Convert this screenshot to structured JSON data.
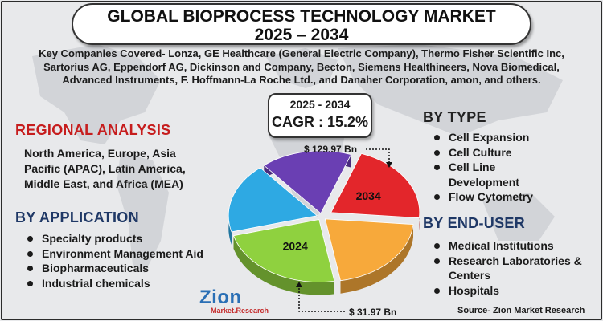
{
  "title": {
    "line1": "GLOBAL BIOPROCESS TECHNOLOGY MARKET",
    "line2": "2025 – 2034"
  },
  "companies": {
    "line1": "Key Companies Covered- Lonza, GE Healthcare (General Electric Company), Thermo Fisher Scientific Inc,",
    "line2": "Sartorius AG, Eppendorf AG, Dickinson and Company, Becton, Siemens Healthineers, Nova Biomedical,",
    "line3": "Advanced Instruments, F. Hoffmann-La Roche Ltd., and Danaher Corporation, amon, and others."
  },
  "cagr": {
    "period": "2025 - 2034",
    "label": "CAGR : 15.2%"
  },
  "regional": {
    "heading": "REGIONAL ANALYSIS",
    "line1": "North America, Europe, Asia",
    "line2": "Pacific (APAC), Latin America,",
    "line3": "Middle East, and Africa (MEA)"
  },
  "application": {
    "heading": "BY APPLICATION",
    "items": [
      "Specialty products",
      "Environment Management Aid",
      "Biopharmaceuticals",
      "Industrial chemicals"
    ]
  },
  "type": {
    "heading": "BY TYPE",
    "items": [
      "Cell Expansion",
      "Cell Culture",
      "Cell Line",
      "Development",
      "Flow Cytometry"
    ]
  },
  "end_user": {
    "heading": "BY END-USER",
    "items": [
      "Medical Institutions",
      "Research Laboratories &",
      "Centers",
      "Hospitals"
    ]
  },
  "logo": {
    "name": "Zion",
    "sub": "Market.Research"
  },
  "source": "Source- Zion Market Research",
  "chart_data": {
    "type": "pie",
    "slices": [
      {
        "label": "2034",
        "value": 129.97,
        "value_label": "$ 129.97 Bn",
        "color": "#e3262b"
      },
      {
        "label": "",
        "value": null,
        "color": "#f7a93b"
      },
      {
        "label": "2024",
        "value": 31.97,
        "value_label": "$ 31.97 Bn",
        "color": "#8fd13f"
      },
      {
        "label": "",
        "value": null,
        "color": "#2ea9e3"
      },
      {
        "label": "",
        "value": null,
        "color": "#6a3fb3"
      }
    ]
  }
}
